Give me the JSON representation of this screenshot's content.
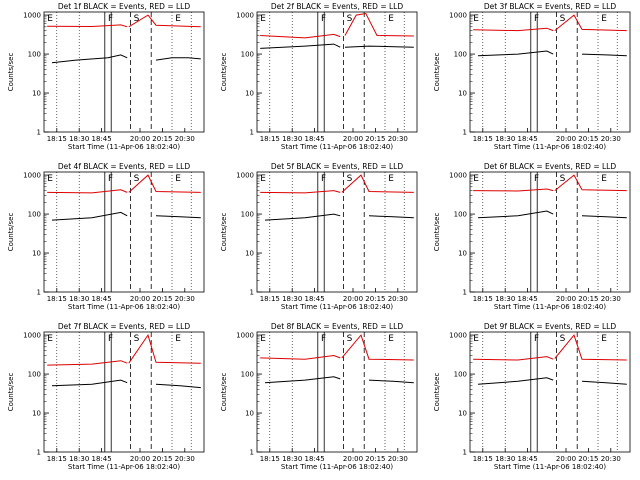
{
  "figure": {
    "panels": [
      {
        "title": "Det 1f BLACK = Events, RED = LLD"
      },
      {
        "title": "Det 2f BLACK = Events, RED = LLD"
      },
      {
        "title": "Det 3f BLACK = Events, RED = LLD"
      },
      {
        "title": "Det 4f BLACK = Events, RED = LLD"
      },
      {
        "title": "Det 5f BLACK = Events, RED = LLD"
      },
      {
        "title": "Det 6f BLACK = Events, RED = LLD"
      },
      {
        "title": "Det 7f BLACK = Events, RED = LLD"
      },
      {
        "title": "Det 8f BLACK = Events, RED = LLD"
      },
      {
        "title": "Det 9f BLACK = Events, RED = LLD"
      }
    ],
    "xlabel": "Start Time (11-Apr-06 18:02:40)",
    "ylabel": "Counts/sec",
    "xticks": [
      "18:15",
      "18:30",
      "18:45",
      "20:00",
      "20:15",
      "20:30"
    ],
    "yticks": [
      "1",
      "10",
      "100",
      "1000"
    ],
    "markers": [
      "E",
      "F",
      "S",
      "E"
    ],
    "colors": {
      "events": "#000000",
      "lld": "#dd0000"
    }
  },
  "chart_data": [
    {
      "type": "line",
      "title": "Det 1f BLACK = Events, RED = LLD",
      "ylim": [
        1,
        1200
      ],
      "log_y": true,
      "series": [
        {
          "name": "Events",
          "color": "#000000",
          "segments": [
            {
              "x": [
                0.05,
                0.2,
                0.4,
                0.48,
                0.52
              ],
              "y": [
                60,
                70,
                80,
                95,
                80
              ]
            },
            {
              "x": [
                0.7,
                0.8,
                0.9,
                0.98
              ],
              "y": [
                70,
                80,
                80,
                75
              ]
            }
          ]
        },
        {
          "name": "LLD",
          "color": "#dd0000",
          "segments": [
            {
              "x": [
                0.02,
                0.3,
                0.48,
                0.52
              ],
              "y": [
                520,
                510,
                560,
                500
              ]
            },
            {
              "x": [
                0.53,
                0.65,
                0.7,
                0.98
              ],
              "y": [
                500,
                1000,
                550,
                500
              ]
            }
          ]
        }
      ]
    },
    {
      "type": "line",
      "title": "Det 2f BLACK = Events, RED = LLD",
      "ylim": [
        1,
        1200
      ],
      "log_y": true,
      "series": [
        {
          "name": "Events",
          "color": "#000000",
          "segments": [
            {
              "x": [
                0.02,
                0.3,
                0.48,
                0.52
              ],
              "y": [
                140,
                160,
                180,
                150
              ]
            },
            {
              "x": [
                0.55,
                0.7,
                0.98
              ],
              "y": [
                150,
                160,
                150
              ]
            }
          ]
        },
        {
          "name": "LLD",
          "color": "#dd0000",
          "segments": [
            {
              "x": [
                0.02,
                0.3,
                0.48,
                0.52
              ],
              "y": [
                300,
                260,
                320,
                280
              ]
            },
            {
              "x": [
                0.55,
                0.62,
                0.68,
                0.75,
                0.98
              ],
              "y": [
                300,
                1000,
                1100,
                300,
                290
              ]
            }
          ]
        }
      ]
    },
    {
      "type": "line",
      "title": "Det 3f BLACK = Events, RED = LLD",
      "ylim": [
        1,
        1200
      ],
      "log_y": true,
      "series": [
        {
          "name": "Events",
          "color": "#000000",
          "segments": [
            {
              "x": [
                0.05,
                0.3,
                0.48,
                0.52
              ],
              "y": [
                90,
                100,
                120,
                100
              ]
            },
            {
              "x": [
                0.7,
                0.85,
                0.98
              ],
              "y": [
                100,
                95,
                90
              ]
            }
          ]
        },
        {
          "name": "LLD",
          "color": "#dd0000",
          "segments": [
            {
              "x": [
                0.02,
                0.3,
                0.48,
                0.52
              ],
              "y": [
                420,
                400,
                460,
                400
              ]
            },
            {
              "x": [
                0.53,
                0.65,
                0.7,
                0.98
              ],
              "y": [
                400,
                1000,
                430,
                400
              ]
            }
          ]
        }
      ]
    },
    {
      "type": "line",
      "title": "Det 4f BLACK = Events, RED = LLD",
      "ylim": [
        1,
        1200
      ],
      "log_y": true,
      "series": [
        {
          "name": "Events",
          "color": "#000000",
          "segments": [
            {
              "x": [
                0.05,
                0.3,
                0.48,
                0.52
              ],
              "y": [
                70,
                80,
                110,
                90
              ]
            },
            {
              "x": [
                0.7,
                0.85,
                0.98
              ],
              "y": [
                90,
                85,
                80
              ]
            }
          ]
        },
        {
          "name": "LLD",
          "color": "#dd0000",
          "segments": [
            {
              "x": [
                0.02,
                0.3,
                0.48,
                0.52
              ],
              "y": [
                360,
                350,
                420,
                360
              ]
            },
            {
              "x": [
                0.53,
                0.65,
                0.7,
                0.98
              ],
              "y": [
                360,
                1000,
                380,
                360
              ]
            }
          ]
        }
      ]
    },
    {
      "type": "line",
      "title": "Det 5f BLACK = Events, RED = LLD",
      "ylim": [
        1,
        1200
      ],
      "log_y": true,
      "series": [
        {
          "name": "Events",
          "color": "#000000",
          "segments": [
            {
              "x": [
                0.05,
                0.3,
                0.48,
                0.52
              ],
              "y": [
                70,
                80,
                100,
                90
              ]
            },
            {
              "x": [
                0.7,
                0.85,
                0.98
              ],
              "y": [
                90,
                85,
                80
              ]
            }
          ]
        },
        {
          "name": "LLD",
          "color": "#dd0000",
          "segments": [
            {
              "x": [
                0.02,
                0.3,
                0.48,
                0.52
              ],
              "y": [
                360,
                350,
                400,
                360
              ]
            },
            {
              "x": [
                0.53,
                0.65,
                0.7,
                0.98
              ],
              "y": [
                360,
                1000,
                380,
                360
              ]
            }
          ]
        }
      ]
    },
    {
      "type": "line",
      "title": "Det 6f BLACK = Events, RED = LLD",
      "ylim": [
        1,
        1200
      ],
      "log_y": true,
      "series": [
        {
          "name": "Events",
          "color": "#000000",
          "segments": [
            {
              "x": [
                0.05,
                0.3,
                0.48,
                0.52
              ],
              "y": [
                80,
                90,
                120,
                100
              ]
            },
            {
              "x": [
                0.7,
                0.85,
                0.98
              ],
              "y": [
                90,
                85,
                80
              ]
            }
          ]
        },
        {
          "name": "LLD",
          "color": "#dd0000",
          "segments": [
            {
              "x": [
                0.02,
                0.3,
                0.48,
                0.52
              ],
              "y": [
                400,
                390,
                440,
                400
              ]
            },
            {
              "x": [
                0.53,
                0.65,
                0.7,
                0.98
              ],
              "y": [
                400,
                1000,
                420,
                400
              ]
            }
          ]
        }
      ]
    },
    {
      "type": "line",
      "title": "Det 7f BLACK = Events, RED = LLD",
      "ylim": [
        1,
        1200
      ],
      "log_y": true,
      "series": [
        {
          "name": "Events",
          "color": "#000000",
          "segments": [
            {
              "x": [
                0.05,
                0.3,
                0.48,
                0.52
              ],
              "y": [
                50,
                55,
                70,
                60
              ]
            },
            {
              "x": [
                0.7,
                0.85,
                0.98
              ],
              "y": [
                55,
                50,
                45
              ]
            }
          ]
        },
        {
          "name": "LLD",
          "color": "#dd0000",
          "segments": [
            {
              "x": [
                0.02,
                0.3,
                0.48,
                0.52
              ],
              "y": [
                170,
                180,
                220,
                190
              ]
            },
            {
              "x": [
                0.53,
                0.65,
                0.7,
                0.98
              ],
              "y": [
                190,
                1000,
                200,
                190
              ]
            }
          ]
        }
      ]
    },
    {
      "type": "line",
      "title": "Det 8f BLACK = Events, RED = LLD",
      "ylim": [
        1,
        1200
      ],
      "log_y": true,
      "series": [
        {
          "name": "Events",
          "color": "#000000",
          "segments": [
            {
              "x": [
                0.05,
                0.3,
                0.48,
                0.52
              ],
              "y": [
                60,
                70,
                85,
                75
              ]
            },
            {
              "x": [
                0.7,
                0.85,
                0.98
              ],
              "y": [
                70,
                65,
                60
              ]
            }
          ]
        },
        {
          "name": "LLD",
          "color": "#dd0000",
          "segments": [
            {
              "x": [
                0.02,
                0.3,
                0.48,
                0.52
              ],
              "y": [
                260,
                240,
                300,
                260
              ]
            },
            {
              "x": [
                0.53,
                0.65,
                0.7,
                0.98
              ],
              "y": [
                260,
                1000,
                240,
                230
              ]
            }
          ]
        }
      ]
    },
    {
      "type": "line",
      "title": "Det 9f BLACK = Events, RED = LLD",
      "ylim": [
        1,
        1200
      ],
      "log_y": true,
      "series": [
        {
          "name": "Events",
          "color": "#000000",
          "segments": [
            {
              "x": [
                0.05,
                0.3,
                0.48,
                0.52
              ],
              "y": [
                55,
                65,
                80,
                70
              ]
            },
            {
              "x": [
                0.7,
                0.85,
                0.98
              ],
              "y": [
                65,
                60,
                55
              ]
            }
          ]
        },
        {
          "name": "LLD",
          "color": "#dd0000",
          "segments": [
            {
              "x": [
                0.02,
                0.3,
                0.48,
                0.52
              ],
              "y": [
                240,
                230,
                280,
                240
              ]
            },
            {
              "x": [
                0.53,
                0.65,
                0.7,
                0.98
              ],
              "y": [
                250,
                1000,
                240,
                230
              ]
            }
          ]
        }
      ]
    }
  ]
}
